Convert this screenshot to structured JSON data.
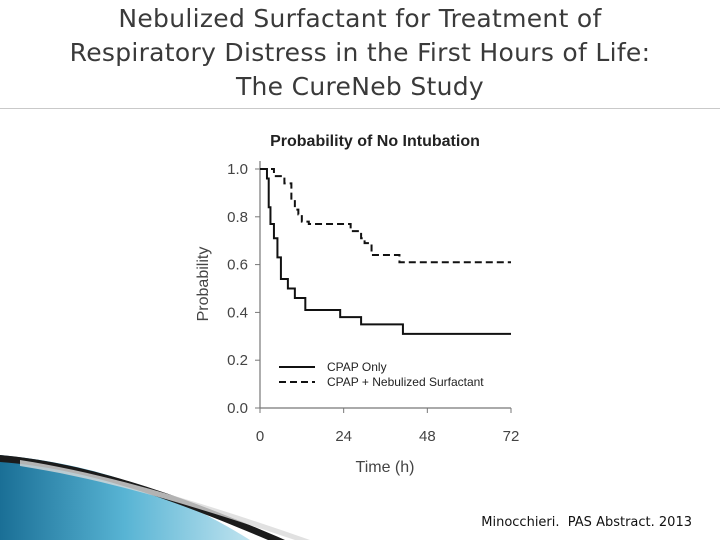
{
  "slide": {
    "title_lines": [
      "Nebulized Surfactant for Treatment of",
      "Respiratory Distress in the First Hours of Life:",
      "The CureNeb Study"
    ],
    "citation": "Minocchieri.  PAS Abstract. 2013"
  },
  "chart_data": {
    "type": "line",
    "subtype": "step",
    "title": "Probability of No Intubation",
    "xlabel": "Time (h)",
    "ylabel": "Probability",
    "xlim": [
      0,
      72
    ],
    "ylim": [
      0,
      1.0
    ],
    "xticks": [
      0,
      24,
      48,
      72
    ],
    "xtick_labels": [
      "0",
      "24",
      "48",
      "72"
    ],
    "yticks": [
      0.0,
      0.2,
      0.4,
      0.6,
      0.8,
      1.0
    ],
    "ytick_labels": [
      "0.0",
      "0.2",
      "0.4",
      "0.6",
      "0.8",
      "1.0"
    ],
    "grid": false,
    "legend_position": "lower-left",
    "series": [
      {
        "name": "CPAP Only",
        "style": "solid",
        "color": "#111111",
        "x": [
          0,
          2,
          2.5,
          3,
          4,
          5,
          6,
          8,
          10,
          13,
          23,
          29,
          41,
          72
        ],
        "y": [
          1.0,
          0.96,
          0.84,
          0.77,
          0.71,
          0.63,
          0.54,
          0.5,
          0.46,
          0.41,
          0.38,
          0.35,
          0.31,
          0.31
        ]
      },
      {
        "name": "CPAP + Nebulized Surfactant",
        "style": "dashed",
        "color": "#111111",
        "x": [
          0,
          4,
          7,
          9,
          10,
          11,
          12,
          14,
          26,
          29,
          30,
          32,
          40,
          72
        ],
        "y": [
          1.0,
          0.97,
          0.94,
          0.87,
          0.83,
          0.81,
          0.78,
          0.77,
          0.74,
          0.71,
          0.69,
          0.64,
          0.61,
          0.61
        ]
      }
    ]
  }
}
